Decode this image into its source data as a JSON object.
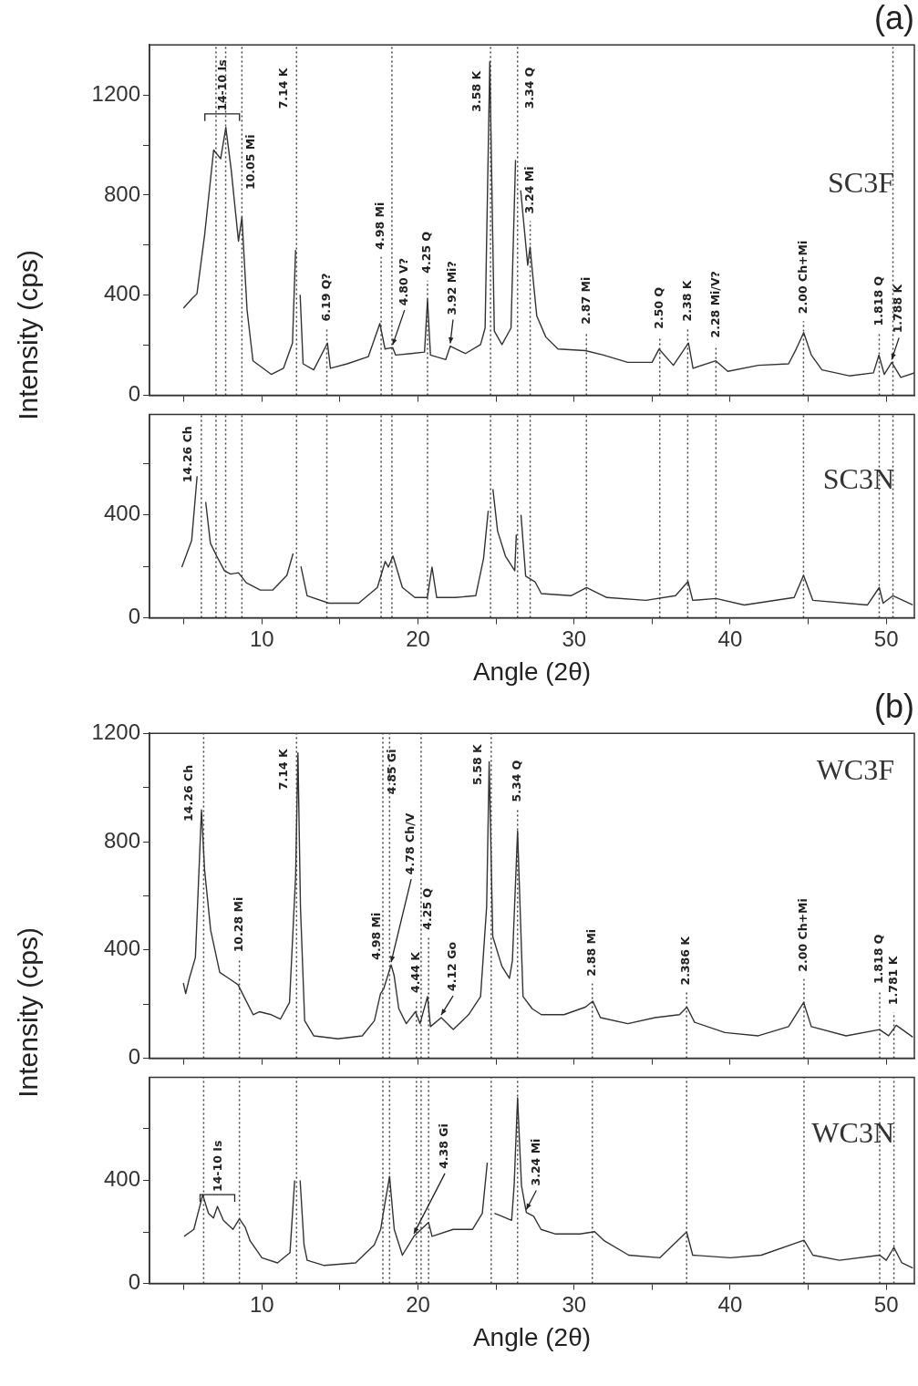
{
  "chart_data": [
    {
      "type": "line",
      "title": "(a)",
      "ylabel": "Intensity (cps)",
      "tick_labels": "y",
      "xlim": [
        2.8,
        51.8
      ],
      "ylim": [
        0,
        1400
      ],
      "xticks": [
        {
          "value": 5,
          "label": null
        },
        10,
        {
          "value": 15,
          "label": null
        },
        20,
        {
          "value": 25,
          "label": null
        },
        30,
        {
          "value": 35,
          "label": null
        },
        40,
        {
          "value": 45,
          "label": null
        },
        50
      ],
      "yticks": [
        0,
        {
          "value": 200,
          "label": null
        },
        400,
        {
          "value": 600,
          "label": null
        },
        800,
        {
          "value": 1000,
          "label": null
        },
        1200
      ],
      "x": [
        4.97,
        5.55,
        5.84,
        6.33,
        6.91,
        7.36,
        7.69,
        8.03,
        8.5,
        8.72,
        9.05,
        9.43,
        10.6,
        11.38,
        11.96,
        12.16,
        12.29,
        12.45,
        12.64,
        13.32,
        14.2,
        14.39,
        15.46,
        16.82,
        17.56,
        17.89,
        18.38,
        18.57,
        19.55,
        20.42,
        20.61,
        20.8,
        21.78,
        22.07,
        23.04,
        24.01,
        24.3,
        24.6,
        24.89,
        25.38,
        25.96,
        26.25,
        26.34,
        26.58,
        27.03,
        27.18,
        27.42,
        27.61,
        28.19,
        28.97,
        30.72,
        31.88,
        33.44,
        35.0,
        35.44,
        36.36,
        37.33,
        37.62,
        39.08,
        39.85,
        41.8,
        43.74,
        44.23,
        44.71,
        45.2,
        45.88,
        47.63,
        49.18,
        49.53,
        49.87,
        50.35,
        50.93,
        51.8
      ],
      "series": [
        {
          "name": "SC3F",
          "color": "#333333",
          "values": [
            348,
            388,
            406,
            640,
            980,
            945,
            1070,
            903,
            616,
            711,
            341,
            138,
            84,
            108,
            209,
            580,
            null,
            402,
            126,
            102,
            209,
            108,
            126,
            155,
            287,
            185,
            191,
            161,
            167,
            173,
            383,
            161,
            143,
            197,
            167,
            203,
            269,
            1333,
            257,
            203,
            269,
            940,
            null,
            819,
            520,
            592,
            437,
            317,
            233,
            185,
            179,
            161,
            132,
            132,
            185,
            120,
            209,
            108,
            138,
            96,
            120,
            126,
            185,
            251,
            161,
            102,
            78,
            90,
            161,
            84,
            132,
            72,
            90
          ]
        }
      ],
      "ref_lines": [
        {
          "axis": "x",
          "value": 7.06,
          "line_style": "dotted"
        },
        {
          "axis": "x",
          "value": 7.68,
          "line_style": "dotted"
        },
        {
          "axis": "x",
          "value": 8.72,
          "line_style": "dotted"
        },
        {
          "axis": "x",
          "value": 12.22,
          "line_style": "dotted"
        },
        {
          "axis": "x",
          "value": 14.16,
          "line_style": "dotted"
        },
        {
          "axis": "x",
          "value": 17.64,
          "line_style": "dotted"
        },
        {
          "axis": "x",
          "value": 18.33,
          "line_style": "dotted"
        },
        {
          "axis": "x",
          "value": 20.61,
          "line_style": "dotted"
        },
        {
          "axis": "x",
          "value": 24.65,
          "line_style": "dotted"
        },
        {
          "axis": "x",
          "value": 26.38,
          "line_style": "dotted"
        },
        {
          "axis": "x",
          "value": 27.19,
          "line_style": "dotted"
        },
        {
          "axis": "x",
          "value": 30.79,
          "line_style": "dotted"
        },
        {
          "axis": "x",
          "value": 35.49,
          "line_style": "dotted"
        },
        {
          "axis": "x",
          "value": 37.28,
          "line_style": "dotted"
        },
        {
          "axis": "x",
          "value": 39.09,
          "line_style": "dotted"
        },
        {
          "axis": "x",
          "value": 44.7,
          "line_style": "dotted"
        },
        {
          "axis": "x",
          "value": 49.55,
          "line_style": "dotted"
        },
        {
          "axis": "x",
          "value": 50.43,
          "line_style": "dotted"
        }
      ],
      "annotations": [
        {
          "text": "14-10 Is",
          "x": 7.69,
          "y": 1070
        },
        {
          "text": "10.05 Mi",
          "x": 8.72,
          "y": 807
        },
        {
          "text": "7.14 K",
          "x": 12.22,
          "y": 1130
        },
        {
          "text": "6.19 Q?",
          "x": 14.16,
          "y": 281
        },
        {
          "text": "4.98 Mi",
          "x": 17.64,
          "y": 568
        },
        {
          "text": "4.80 V?",
          "x": 18.38,
          "y": 191
        },
        {
          "text": "4.25 Q",
          "x": 20.61,
          "y": 473
        },
        {
          "text": "3.92 Mi?",
          "x": 22.07,
          "y": 197
        },
        {
          "text": "3.58 K",
          "x": 24.65,
          "y": 1118
        },
        {
          "text": "3.34 Q",
          "x": 26.38,
          "y": 1130
        },
        {
          "text": "3.24 Mi",
          "x": 27.19,
          "y": 711
        },
        {
          "text": "2.87 Mi",
          "x": 30.79,
          "y": 269
        },
        {
          "text": "2.50 Q",
          "x": 35.49,
          "y": 251
        },
        {
          "text": "2.38 K",
          "x": 37.28,
          "y": 281
        },
        {
          "text": "2.28 Mi/V?",
          "x": 39.09,
          "y": 215
        },
        {
          "text": "2.00 Ch+Mi",
          "x": 44.7,
          "y": 311
        },
        {
          "text": "1.818 Q",
          "x": 49.55,
          "y": 263
        },
        {
          "text": "1.788 K",
          "x": 50.35,
          "y": 132
        }
      ]
    },
    {
      "type": "line",
      "xlabel": "Angle (2θ)",
      "xlim": [
        2.8,
        51.8
      ],
      "ylim": [
        0,
        790
      ],
      "xticks": [
        {
          "value": 5,
          "label": null
        },
        10,
        {
          "value": 15,
          "label": null
        },
        20,
        {
          "value": 25,
          "label": null
        },
        30,
        {
          "value": 35,
          "label": null
        },
        40,
        {
          "value": 45,
          "label": null
        },
        50
      ],
      "yticks": [
        0,
        {
          "value": 200,
          "label": null
        },
        400,
        {
          "value": 600,
          "label": null
        }
      ],
      "x": [
        4.87,
        5.5,
        5.85,
        6.12,
        6.4,
        6.7,
        7.1,
        7.6,
        8.0,
        8.5,
        9.0,
        9.9,
        10.7,
        11.6,
        12.0,
        12.22,
        12.5,
        12.9,
        14.3,
        16.2,
        17.4,
        17.9,
        18.1,
        18.4,
        19.0,
        19.8,
        20.6,
        20.9,
        21.2,
        22.4,
        23.7,
        24.2,
        24.5,
        24.65,
        24.8,
        25.1,
        25.6,
        26.2,
        26.3,
        26.4,
        26.6,
        26.9,
        27.5,
        27.9,
        29.8,
        30.8,
        32.1,
        34.6,
        36.5,
        37.3,
        37.6,
        39.1,
        40.9,
        44.1,
        44.7,
        45.3,
        48.8,
        49.55,
        49.8,
        50.43,
        51.7
      ],
      "series": [
        {
          "name": "SC3N",
          "color": "#333333",
          "values": [
            197,
            300,
            550,
            null,
            450,
            290,
            240,
            183,
            170,
            175,
            136,
            108,
            108,
            165,
            250,
            null,
            200,
            86,
            57,
            57,
            118,
            219,
            197,
            240,
            118,
            79,
            79,
            197,
            79,
            79,
            86,
            230,
            416,
            null,
            500,
            337,
            240,
            183,
            323,
            null,
            400,
            162,
            140,
            94,
            86,
            118,
            79,
            68,
            86,
            141,
            68,
            75,
            50,
            79,
            165,
            68,
            50,
            118,
            57,
            86,
            50
          ]
        }
      ],
      "ref_lines": [
        {
          "axis": "x",
          "value": 6.12,
          "line_style": "dotted"
        },
        {
          "axis": "x",
          "value": 7.06,
          "line_style": "dotted"
        },
        {
          "axis": "x",
          "value": 7.68,
          "line_style": "dotted"
        },
        {
          "axis": "x",
          "value": 8.72,
          "line_style": "dotted"
        },
        {
          "axis": "x",
          "value": 12.22,
          "line_style": "dotted"
        },
        {
          "axis": "x",
          "value": 14.16,
          "line_style": "dotted"
        },
        {
          "axis": "x",
          "value": 17.64,
          "line_style": "dotted"
        },
        {
          "axis": "x",
          "value": 18.33,
          "line_style": "dotted"
        },
        {
          "axis": "x",
          "value": 20.61,
          "line_style": "dotted"
        },
        {
          "axis": "x",
          "value": 24.65,
          "line_style": "dotted"
        },
        {
          "axis": "x",
          "value": 26.38,
          "line_style": "dotted"
        },
        {
          "axis": "x",
          "value": 27.19,
          "line_style": "dotted"
        },
        {
          "axis": "x",
          "value": 30.79,
          "line_style": "dotted"
        },
        {
          "axis": "x",
          "value": 35.49,
          "line_style": "dotted"
        },
        {
          "axis": "x",
          "value": 37.28,
          "line_style": "dotted"
        },
        {
          "axis": "x",
          "value": 39.09,
          "line_style": "dotted"
        },
        {
          "axis": "x",
          "value": 44.7,
          "line_style": "dotted"
        },
        {
          "axis": "x",
          "value": 49.55,
          "line_style": "dotted"
        },
        {
          "axis": "x",
          "value": 50.43,
          "line_style": "dotted"
        }
      ],
      "annotations": [
        {
          "text": "14.26 Ch",
          "x": 6.12,
          "y": 511
        }
      ]
    },
    {
      "type": "line",
      "title": "(b)",
      "ylabel": "Intensity (cps)",
      "tick_labels": "y",
      "xlim": [
        2.8,
        51.8
      ],
      "ylim": [
        0,
        1200
      ],
      "xticks": [
        {
          "value": 5,
          "label": null
        },
        10,
        {
          "value": 15,
          "label": null
        },
        20,
        {
          "value": 25,
          "label": null
        },
        30,
        {
          "value": 35,
          "label": null
        },
        40,
        {
          "value": 45,
          "label": null
        },
        50
      ],
      "yticks": [
        0,
        {
          "value": 200,
          "label": null
        },
        400,
        {
          "value": 600,
          "label": null
        },
        800,
        {
          "value": 1000,
          "label": null
        },
        1200
      ],
      "x": [
        4.97,
        5.12,
        5.35,
        5.74,
        6.13,
        6.33,
        6.72,
        7.3,
        7.88,
        8.47,
        8.85,
        9.44,
        9.83,
        10.6,
        11.19,
        11.77,
        12.16,
        12.31,
        12.47,
        12.74,
        13.32,
        14.88,
        16.43,
        17.21,
        17.6,
        17.8,
        18.28,
        18.47,
        18.77,
        19.25,
        19.84,
        20.13,
        20.61,
        20.8,
        21.49,
        22.26,
        23.24,
        24.01,
        24.4,
        24.56,
        24.79,
        25.38,
        25.86,
        26.05,
        26.38,
        26.73,
        27.32,
        27.9,
        29.36,
        30.72,
        31.2,
        31.69,
        33.44,
        35.19,
        36.75,
        37.23,
        37.72,
        39.66,
        41.8,
        43.74,
        44.71,
        45.2,
        47.43,
        49.57,
        50.15,
        50.64,
        51.7
      ],
      "series": [
        {
          "name": "WC3F",
          "color": "#333333",
          "values": [
            278,
            239,
            295,
            372,
            917,
            695,
            472,
            317,
            295,
            272,
            228,
            161,
            172,
            161,
            145,
            206,
            672,
            1128,
            561,
            139,
            83,
            72,
            83,
            139,
            239,
            256,
            345,
            306,
            183,
            128,
            172,
            128,
            228,
            117,
            150,
            106,
            161,
            228,
            561,
            1095,
            450,
            339,
            295,
            361,
            839,
            228,
            183,
            161,
            161,
            189,
            211,
            150,
            128,
            150,
            161,
            189,
            133,
            95,
            83,
            117,
            206,
            117,
            83,
            106,
            83,
            122,
            78
          ]
        }
      ],
      "ref_lines": [
        {
          "axis": "x",
          "value": 6.27,
          "line_style": "dotted"
        },
        {
          "axis": "x",
          "value": 8.56,
          "line_style": "dotted"
        },
        {
          "axis": "x",
          "value": 12.22,
          "line_style": "dotted"
        },
        {
          "axis": "x",
          "value": 17.75,
          "line_style": "dotted"
        },
        {
          "axis": "x",
          "value": 18.18,
          "line_style": "dotted"
        },
        {
          "axis": "x",
          "value": 19.9,
          "line_style": "dotted"
        },
        {
          "axis": "x",
          "value": 20.2,
          "line_style": "dotted"
        },
        {
          "axis": "x",
          "value": 20.68,
          "line_style": "dotted"
        },
        {
          "axis": "x",
          "value": 24.69,
          "line_style": "dotted"
        },
        {
          "axis": "x",
          "value": 26.38,
          "line_style": "dotted"
        },
        {
          "axis": "x",
          "value": 31.17,
          "line_style": "dotted"
        },
        {
          "axis": "x",
          "value": 37.21,
          "line_style": "dotted"
        },
        {
          "axis": "x",
          "value": 44.73,
          "line_style": "dotted"
        },
        {
          "axis": "x",
          "value": 49.58,
          "line_style": "dotted"
        },
        {
          "axis": "x",
          "value": 50.49,
          "line_style": "dotted"
        }
      ],
      "annotations": [
        {
          "text": "14.26 Ch",
          "x": 6.27,
          "y": 861
        },
        {
          "text": "10.28 Mi",
          "x": 8.56,
          "y": 378
        },
        {
          "text": "7.14 K",
          "x": 12.22,
          "y": 978
        },
        {
          "text": "4.98 Mi",
          "x": 17.75,
          "y": 350
        },
        {
          "text": "4.85 Gi",
          "x": 18.18,
          "y": 961
        },
        {
          "text": "4.78 Ch/V",
          "x": 18.28,
          "y": 345
        },
        {
          "text": "4.44 K",
          "x": 19.9,
          "y": 228
        },
        {
          "text": "4.25 Q",
          "x": 20.68,
          "y": 461
        },
        {
          "text": "4.12 Go",
          "x": 21.49,
          "y": 150
        },
        {
          "text": "5.58 K",
          "x": 24.69,
          "y": 995
        },
        {
          "text": "5.34 Q",
          "x": 26.38,
          "y": 933
        },
        {
          "text": "2.88 Mi",
          "x": 31.17,
          "y": 289
        },
        {
          "text": "2.386 K",
          "x": 37.21,
          "y": 256
        },
        {
          "text": "2.00 Ch+Mi",
          "x": 44.73,
          "y": 306
        },
        {
          "text": "1.818 Q",
          "x": 49.58,
          "y": 261
        },
        {
          "text": "1.781 K",
          "x": 50.49,
          "y": 183
        }
      ]
    },
    {
      "type": "line",
      "xlabel": "Angle (2θ)",
      "xlim": [
        2.8,
        51.8
      ],
      "ylim": [
        0,
        800
      ],
      "xticks": [
        {
          "value": 5,
          "label": null
        },
        10,
        {
          "value": 15,
          "label": null
        },
        20,
        {
          "value": 25,
          "label": null
        },
        30,
        {
          "value": 35,
          "label": null
        },
        40,
        {
          "value": 45,
          "label": null
        },
        50
      ],
      "yticks": [
        0,
        {
          "value": 200,
          "label": null
        },
        400,
        {
          "value": 600,
          "label": null
        }
      ],
      "x": [
        5.02,
        5.64,
        6.21,
        6.58,
        6.9,
        7.15,
        7.53,
        8.15,
        8.56,
        8.93,
        9.25,
        10.0,
        11.0,
        11.8,
        12.1,
        12.25,
        12.45,
        12.7,
        12.9,
        14.0,
        16.0,
        17.2,
        17.61,
        17.85,
        18.18,
        18.48,
        19.0,
        19.74,
        20.2,
        20.68,
        20.9,
        22.25,
        23.5,
        24.12,
        24.44,
        24.67,
        24.9,
        25.38,
        26.0,
        26.16,
        26.38,
        26.63,
        26.94,
        27.41,
        27.88,
        28.82,
        30.38,
        31.32,
        31.95,
        33.5,
        35.5,
        37.21,
        37.6,
        40.0,
        42.0,
        44.73,
        45.3,
        47.0,
        49.58,
        50.0,
        50.49,
        51.0,
        51.7
      ],
      "series": [
        {
          "name": "WC3N",
          "color": "#333333",
          "values": [
            183,
            210,
            344,
            272,
            254,
            299,
            245,
            210,
            251,
            218,
            165,
            100,
            80,
            120,
            400,
            null,
            400,
            150,
            90,
            70,
            80,
            150,
            210,
            300,
            415,
            210,
            110,
            183,
            210,
            237,
            183,
            210,
            210,
            272,
            469,
            null,
            272,
            261,
            245,
            380,
            720,
            380,
            276,
            261,
            210,
            192,
            192,
            201,
            165,
            110,
            100,
            200,
            110,
            100,
            110,
            168,
            110,
            90,
            110,
            90,
            140,
            80,
            60
          ]
        }
      ],
      "ref_lines": [
        {
          "axis": "x",
          "value": 6.27,
          "line_style": "dotted"
        },
        {
          "axis": "x",
          "value": 8.56,
          "line_style": "dotted"
        },
        {
          "axis": "x",
          "value": 12.22,
          "line_style": "dotted"
        },
        {
          "axis": "x",
          "value": 17.75,
          "line_style": "dotted"
        },
        {
          "axis": "x",
          "value": 18.18,
          "line_style": "dotted"
        },
        {
          "axis": "x",
          "value": 19.9,
          "line_style": "dotted"
        },
        {
          "axis": "x",
          "value": 20.2,
          "line_style": "dotted"
        },
        {
          "axis": "x",
          "value": 20.68,
          "line_style": "dotted"
        },
        {
          "axis": "x",
          "value": 24.69,
          "line_style": "dotted"
        },
        {
          "axis": "x",
          "value": 26.38,
          "line_style": "dotted"
        },
        {
          "axis": "x",
          "value": 31.17,
          "line_style": "dotted"
        },
        {
          "axis": "x",
          "value": 37.21,
          "line_style": "dotted"
        },
        {
          "axis": "x",
          "value": 44.73,
          "line_style": "dotted"
        },
        {
          "axis": "x",
          "value": 49.58,
          "line_style": "dotted"
        },
        {
          "axis": "x",
          "value": 50.49,
          "line_style": "dotted"
        }
      ],
      "annotations": [
        {
          "text": "14-10 Is",
          "x": 7.15,
          "y": 299
        },
        {
          "text": "4.38 Gi",
          "x": 19.74,
          "y": 183
        },
        {
          "text": "3.24 Mi",
          "x": 26.94,
          "y": 276
        }
      ]
    }
  ]
}
